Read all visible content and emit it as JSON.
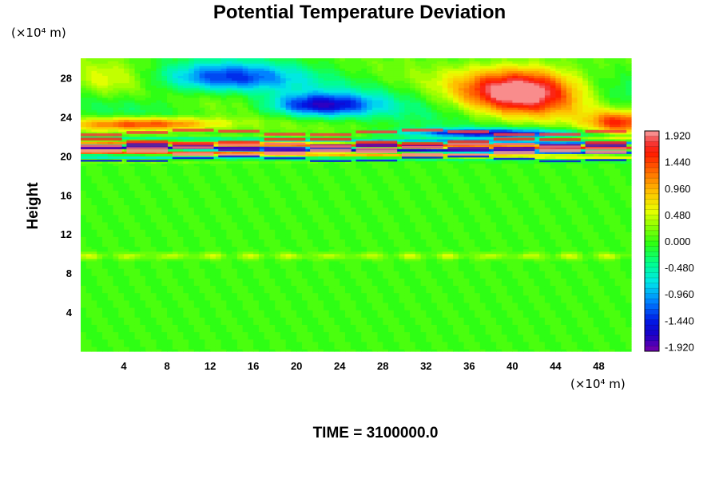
{
  "chart_data": {
    "type": "heatmap",
    "title": "Potential Temperature Deviation",
    "ylabel": "Height",
    "x_unit": "(×10⁴ m)",
    "y_unit": "(×10⁴ m)",
    "footer": "TIME = 3100000.0",
    "xlim": [
      0,
      51
    ],
    "ylim": [
      0,
      30
    ],
    "x_ticks": [
      4,
      8,
      12,
      16,
      20,
      24,
      28,
      32,
      36,
      40,
      44,
      48
    ],
    "y_ticks": [
      4,
      8,
      12,
      16,
      20,
      24,
      28
    ],
    "colorbar": {
      "range": [
        -2.0,
        2.0
      ],
      "tick_labels": [
        "1.920",
        "1.440",
        "0.960",
        "0.480",
        "0.000",
        "-0.480",
        "-0.960",
        "-1.440",
        "-1.920"
      ],
      "tick_values": [
        1.92,
        1.44,
        0.96,
        0.48,
        0.0,
        -0.48,
        -0.96,
        -1.44,
        -1.92
      ],
      "levels": 42
    },
    "features": [
      {
        "x": 41,
        "y": 26.8,
        "sx": 5.5,
        "sy": 2.4,
        "value": 2.1
      },
      {
        "x": 13,
        "y": 28.0,
        "sx": 6.5,
        "sy": 1.6,
        "value": -1.4
      },
      {
        "x": 22,
        "y": 25.2,
        "sx": 5.0,
        "sy": 1.2,
        "value": -1.7
      },
      {
        "x": 2,
        "y": 27.5,
        "sx": 4.0,
        "sy": 2.0,
        "value": 0.55
      },
      {
        "x": 50,
        "y": 23.5,
        "sx": 3.0,
        "sy": 1.2,
        "value": 1.4
      },
      {
        "x": 6,
        "y": 23.3,
        "sx": 7.0,
        "sy": 0.7,
        "value": 1.6
      },
      {
        "x": 38,
        "y": 22.3,
        "sx": 8.0,
        "sy": 0.55,
        "value": -1.7
      }
    ]
  }
}
